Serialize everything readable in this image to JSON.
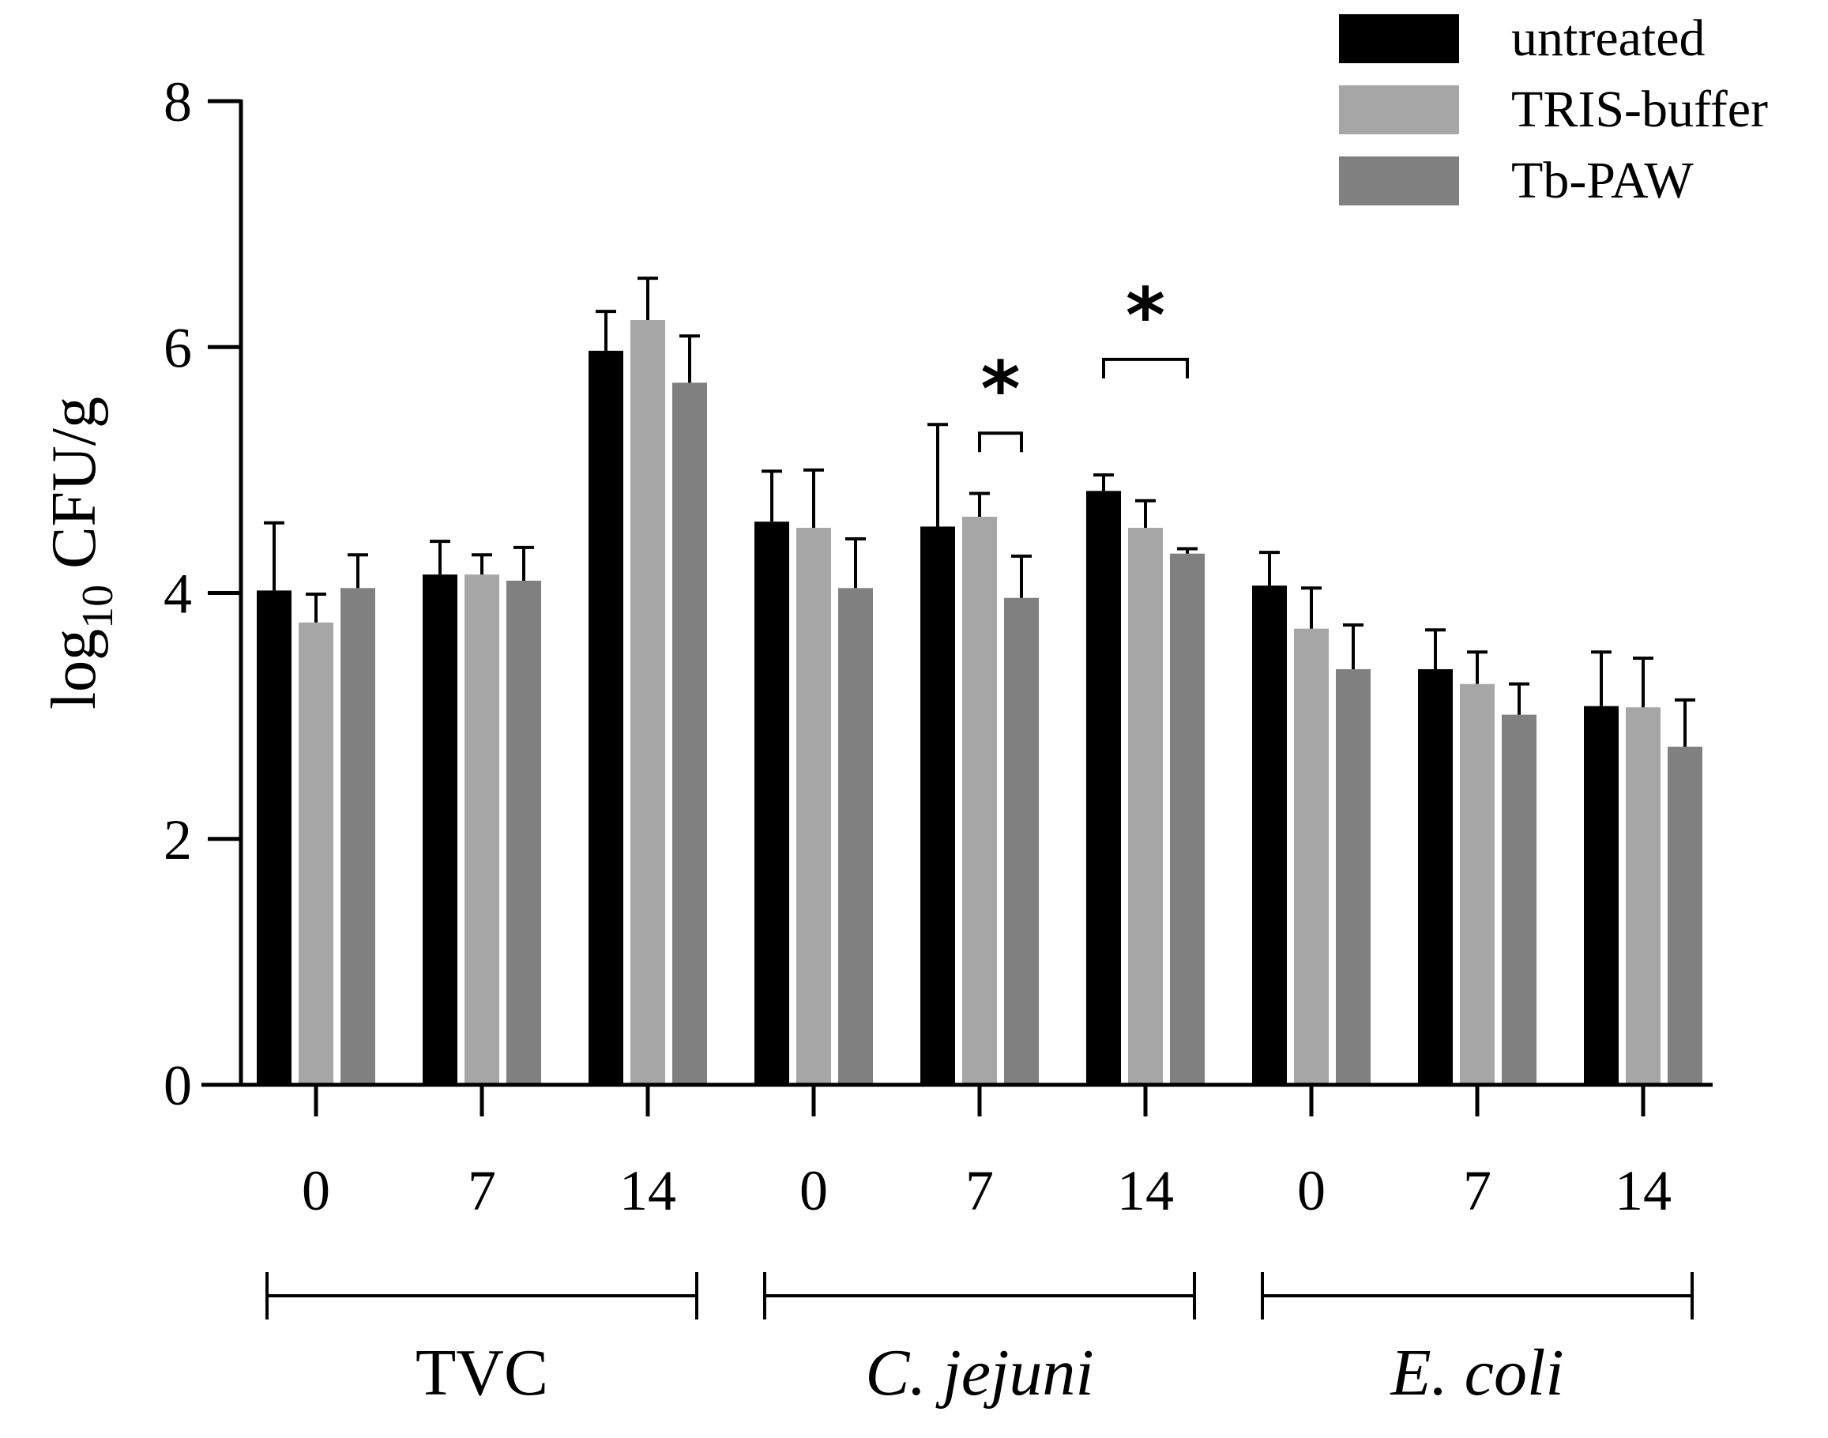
{
  "chart_data": {
    "type": "bar",
    "ylabel_main": "log",
    "ylabel_sub": "10",
    "ylabel_rest": " CFU/g",
    "ylim": [
      0,
      8
    ],
    "yticks": [
      "0",
      "2",
      "4",
      "6",
      "8"
    ],
    "categories": [
      "0",
      "7",
      "14",
      "0",
      "7",
      "14",
      "0",
      "7",
      "14"
    ],
    "groups": [
      {
        "label": "TVC",
        "italic": false,
        "range": [
          0,
          2
        ]
      },
      {
        "label": "C. jejuni",
        "italic": true,
        "range": [
          3,
          5
        ]
      },
      {
        "label": "E. coli",
        "italic": true,
        "range": [
          6,
          8
        ]
      }
    ],
    "legend_position": "top-right",
    "series": [
      {
        "name": "untreated",
        "color": "#000000",
        "values": [
          4.02,
          4.15,
          5.97,
          4.58,
          4.54,
          4.83,
          4.06,
          3.38,
          3.08
        ],
        "errors": [
          0.55,
          0.27,
          0.32,
          0.41,
          0.83,
          0.13,
          0.27,
          0.32,
          0.44
        ]
      },
      {
        "name": "TRIS-buffer",
        "color": "#a6a6a7",
        "values": [
          3.76,
          4.15,
          6.22,
          4.53,
          4.62,
          4.53,
          3.71,
          3.26,
          3.07
        ],
        "errors": [
          0.23,
          0.16,
          0.34,
          0.47,
          0.19,
          0.22,
          0.33,
          0.26,
          0.4
        ]
      },
      {
        "name": "Tb-PAW",
        "color": "#808080",
        "values": [
          4.04,
          4.1,
          5.71,
          4.04,
          3.96,
          4.32,
          3.38,
          3.01,
          2.75
        ],
        "errors": [
          0.27,
          0.27,
          0.38,
          0.4,
          0.34,
          0.04,
          0.36,
          0.25,
          0.38
        ]
      }
    ],
    "annotations": [
      {
        "text": "*",
        "category_index": 4,
        "from_series": 1,
        "to_series": 2,
        "y": 5.3
      },
      {
        "text": "*",
        "category_index": 5,
        "from_series": 0,
        "to_series": 2,
        "y": 5.9
      }
    ]
  }
}
